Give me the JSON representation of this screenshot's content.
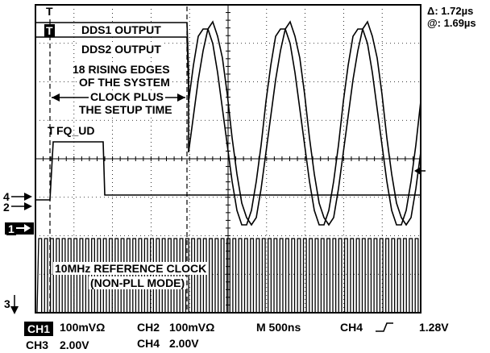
{
  "readout": {
    "delta": "Δ: 1.72µs",
    "at": "@: 1.69µs"
  },
  "trigger_marker": "T",
  "ch_markers": {
    "ch4": "4",
    "ch2": "2",
    "ch1": "1",
    "ch3": "3"
  },
  "labels": {
    "dds1": "DDS1 OUTPUT",
    "dds2": "DDS2 OUTPUT",
    "rising1": "18 RISING EDGES",
    "rising2": "OF THE SYSTEM",
    "rising3": "CLOCK PLUS",
    "rising4": "THE SETUP TIME",
    "fqud_t": "T",
    "fqud": "FQ_UD",
    "ref1": "10MHz REFERENCE CLOCK",
    "ref2": "(NON-PLL MODE)"
  },
  "settings": {
    "ch1_tag": "CH1",
    "ch1_scale": "100mVΩ",
    "ch2": "CH2",
    "ch2_scale": "100mVΩ",
    "time": "M 500ns",
    "trig_ch": "CH4",
    "trig_level": "1.28V",
    "ch3": "CH3",
    "ch3_scale": "2.00V",
    "ch4": "CH4",
    "ch4_scale": "2.00V"
  },
  "colors": {
    "trace": "#000000",
    "grid": "#000000",
    "background": "#ffffff"
  }
}
